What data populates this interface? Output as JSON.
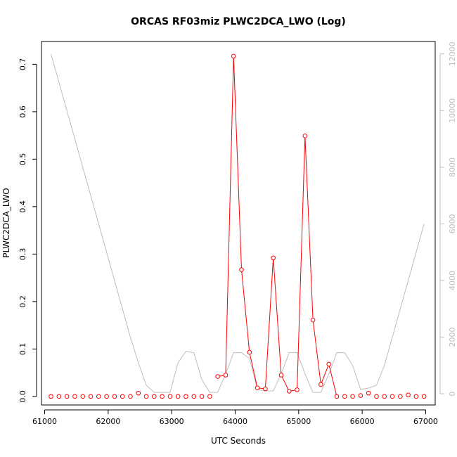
{
  "chart_data": {
    "type": "line",
    "title": "ORCAS RF03miz PLWC2DCA_LWO (Log)",
    "xlabel": "UTC Seconds",
    "ylabel": "PLWC2DCA_LWO",
    "xlim": [
      60950,
      67150
    ],
    "ylim": [
      -0.018,
      0.748
    ],
    "x_ticks": [
      61000,
      62000,
      63000,
      64000,
      65000,
      66000,
      67000
    ],
    "y_ticks": [
      0.0,
      0.1,
      0.2,
      0.3,
      0.4,
      0.5,
      0.6,
      0.7
    ],
    "y2_ticks": [
      0,
      2000,
      4000,
      6000,
      8000,
      10000,
      12000
    ],
    "y2lim": [
      -395,
      12440
    ],
    "grid": false,
    "series": [
      {
        "color": "#ff0000",
        "axis": "left",
        "markers": "open-circle",
        "x": [
          61100,
          61225,
          61350,
          61475,
          61600,
          61725,
          61850,
          61975,
          62100,
          62225,
          62350,
          62475,
          62600,
          62725,
          62850,
          62975,
          63100,
          63225,
          63350,
          63475,
          63600,
          63725,
          63850,
          63975,
          64100,
          64225,
          64350,
          64475,
          64600,
          64725,
          64850,
          64975,
          65100,
          65225,
          65350,
          65475,
          65600,
          65725,
          65850,
          65975,
          66100,
          66225,
          66350,
          66475,
          66600,
          66725,
          66850,
          66975
        ],
        "values": [
          0.0,
          0.0,
          0.0,
          0.0,
          0.0,
          0.0,
          0.0,
          0.0,
          0.0,
          0.0,
          0.0,
          0.007,
          0.0,
          0.0,
          0.0,
          0.0,
          0.0,
          0.0,
          0.0,
          0.0,
          0.0,
          0.042,
          0.045,
          0.717,
          0.267,
          0.093,
          0.018,
          0.016,
          0.292,
          0.045,
          0.011,
          0.014,
          0.549,
          0.161,
          0.025,
          0.068,
          0.0,
          0.0,
          0.0,
          0.002,
          0.007,
          0.0,
          0.0,
          0.0,
          0.0,
          0.003,
          0.0,
          0.0
        ],
        "connected_x": [
          63725,
          63850,
          63975,
          64100,
          64225,
          64350,
          64475,
          64600,
          64725,
          64850,
          64975,
          65100,
          65225,
          65350,
          65475,
          65600
        ]
      },
      {
        "color": "#bebebe",
        "axis": "right",
        "markers": "none",
        "x": [
          61100,
          61225,
          61350,
          61475,
          61600,
          61725,
          61850,
          61975,
          62100,
          62225,
          62350,
          62475,
          62600,
          62725,
          62850,
          62975,
          63100,
          63225,
          63350,
          63475,
          63600,
          63725,
          63850,
          63975,
          64100,
          64225,
          64350,
          64475,
          64600,
          64725,
          64850,
          64975,
          65100,
          65225,
          65350,
          65475,
          65600,
          65725,
          65850,
          65975,
          66100,
          66225,
          66350,
          66475,
          66600,
          66725,
          66850,
          66975
        ],
        "values": [
          12000,
          11000,
          10000,
          9000,
          8000,
          7000,
          6000,
          5000,
          4000,
          3000,
          2000,
          1100,
          300,
          50,
          50,
          50,
          1100,
          1500,
          1450,
          500,
          50,
          50,
          700,
          1450,
          1450,
          1250,
          150,
          100,
          100,
          700,
          1450,
          1450,
          700,
          50,
          50,
          700,
          1450,
          1450,
          1000,
          150,
          200,
          300,
          1000,
          2000,
          3000,
          4000,
          5000,
          6000
        ]
      }
    ]
  }
}
